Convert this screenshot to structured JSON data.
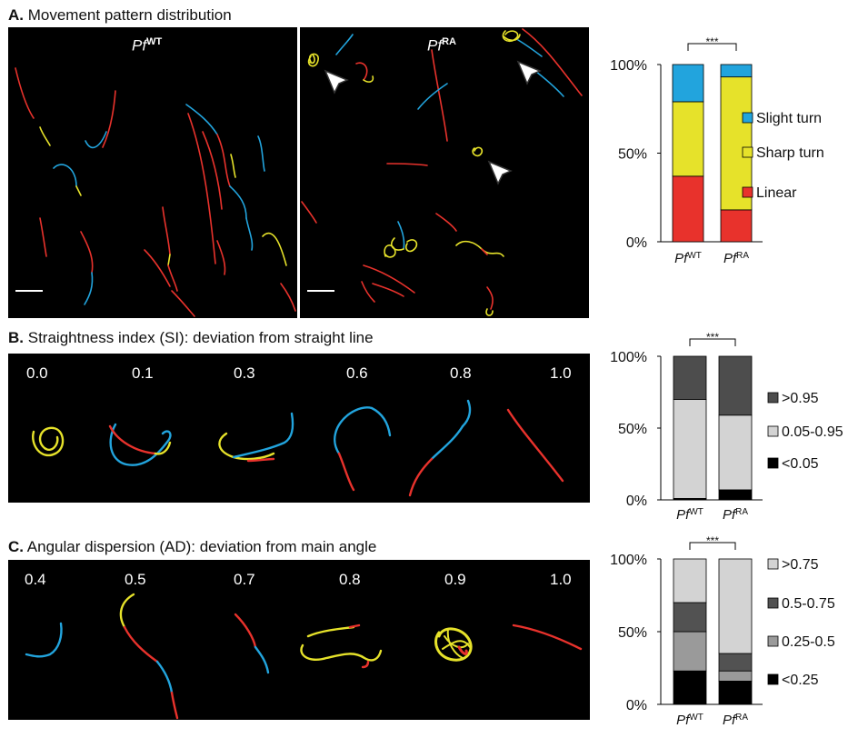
{
  "panel_a": {
    "label": "A.",
    "title": "Movement pattern distribution",
    "wt_species": "Pf",
    "wt_strain": "WT",
    "ra_species": "Pf",
    "ra_strain": "RA"
  },
  "panel_b": {
    "label": "B.",
    "title": "Straightness index (SI): deviation from straight line",
    "examples": [
      "0.0",
      "0.1",
      "0.3",
      "0.6",
      "0.8",
      "1.0"
    ]
  },
  "panel_c": {
    "label": "C.",
    "title": "Angular dispersion (AD): deviation from main angle",
    "examples": [
      "0.4",
      "0.5",
      "0.7",
      "0.8",
      "0.9",
      "1.0"
    ]
  },
  "chart_data": [
    {
      "id": "a",
      "type": "bar",
      "stacked": true,
      "categories": [
        {
          "main": "Pf",
          "sup": "WT"
        },
        {
          "main": "Pf",
          "sup": "RA"
        }
      ],
      "yticks": [
        "0%",
        "50%",
        "100%"
      ],
      "ylim": [
        0,
        100
      ],
      "significance": "***",
      "series": [
        {
          "name": "Linear",
          "color": "#e8322c",
          "values": [
            37,
            18
          ]
        },
        {
          "name": "Sharp turn",
          "color": "#e6e22a",
          "values": [
            42,
            75
          ]
        },
        {
          "name": "Slight turn",
          "color": "#22a4dd",
          "values": [
            21,
            7
          ]
        }
      ]
    },
    {
      "id": "b",
      "type": "bar",
      "stacked": true,
      "categories": [
        {
          "main": "Pf",
          "sup": "WT"
        },
        {
          "main": "Pf",
          "sup": "RA"
        }
      ],
      "yticks": [
        "0%",
        "50%",
        "100%"
      ],
      "ylim": [
        0,
        100
      ],
      "significance": "***",
      "series": [
        {
          "name": "<0.05",
          "color": "#000000",
          "values": [
            1,
            7
          ]
        },
        {
          "name": "0.05-0.95",
          "color": "#d3d3d3",
          "values": [
            69,
            52
          ]
        },
        {
          "name": ">0.95",
          "color": "#4d4d4d",
          "values": [
            30,
            41
          ]
        }
      ]
    },
    {
      "id": "c",
      "type": "bar",
      "stacked": true,
      "categories": [
        {
          "main": "Pf",
          "sup": "WT"
        },
        {
          "main": "Pf",
          "sup": "RA"
        }
      ],
      "yticks": [
        "0%",
        "50%",
        "100%"
      ],
      "ylim": [
        0,
        100
      ],
      "significance": "***",
      "series": [
        {
          "name": "<0.25",
          "color": "#000000",
          "values": [
            23,
            16
          ]
        },
        {
          "name": "0.25-0.5",
          "color": "#9a9a9a",
          "values": [
            27,
            7
          ]
        },
        {
          "name": "0.5-0.75",
          "color": "#525252",
          "values": [
            20,
            12
          ]
        },
        {
          "name": ">0.75",
          "color": "#d3d3d3",
          "values": [
            30,
            65
          ]
        }
      ]
    }
  ]
}
